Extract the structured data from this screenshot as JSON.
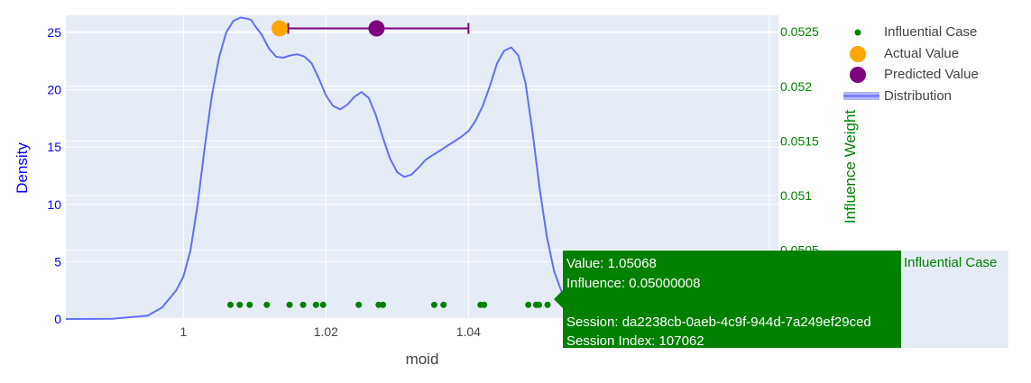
{
  "chart_data": {
    "type": "line",
    "xlabel": "moid",
    "ylabel": "Density",
    "y2label": "Influence Weight",
    "xlim": [
      0.9835,
      1.0835
    ],
    "ylim": [
      0,
      26.5
    ],
    "y2lim": [
      0.04987,
      0.05265
    ],
    "x_ticks": [
      "1",
      "1.02",
      "1.04"
    ],
    "x_tick_values": [
      1.0,
      1.02,
      1.04
    ],
    "y_ticks": [
      "0",
      "5",
      "10",
      "15",
      "20",
      "25"
    ],
    "y2_ticks": [
      "0.0505",
      "0.051",
      "0.0515",
      "0.052",
      "0.0525"
    ],
    "y2_tick_values": [
      0.0505,
      0.051,
      0.0515,
      0.052,
      0.0525
    ],
    "grid": true,
    "legend_position": "top-right",
    "colors": {
      "distribution": "#636efa",
      "influential": "#008000",
      "actual": "#ffa500",
      "predicted": "#800080",
      "plot_bg": "#e5ecf6",
      "y_axis_text": "#0000ff",
      "y2_axis_text": "#008000"
    },
    "series": [
      {
        "name": "Distribution",
        "type": "line",
        "x": [
          0.9835,
          0.99,
          0.995,
          0.997,
          0.999,
          1.0,
          1.001,
          1.002,
          1.003,
          1.004,
          1.005,
          1.006,
          1.007,
          1.008,
          1.009,
          1.0095,
          1.01,
          1.011,
          1.012,
          1.013,
          1.014,
          1.015,
          1.016,
          1.017,
          1.018,
          1.019,
          1.02,
          1.021,
          1.022,
          1.023,
          1.024,
          1.025,
          1.026,
          1.027,
          1.028,
          1.029,
          1.03,
          1.031,
          1.032,
          1.033,
          1.034,
          1.035,
          1.036,
          1.037,
          1.038,
          1.039,
          1.04,
          1.041,
          1.042,
          1.043,
          1.044,
          1.045,
          1.046,
          1.047,
          1.048,
          1.049,
          1.05,
          1.051,
          1.052,
          1.053,
          1.0545
        ],
        "y": [
          0,
          0.02,
          0.3,
          1.0,
          2.5,
          3.7,
          6.0,
          10.0,
          15.0,
          19.5,
          22.8,
          25.0,
          26.0,
          26.3,
          26.2,
          26.1,
          25.6,
          24.8,
          23.6,
          22.9,
          22.8,
          23.0,
          23.1,
          22.9,
          22.3,
          21.0,
          19.5,
          18.6,
          18.3,
          18.7,
          19.4,
          19.8,
          19.3,
          17.8,
          15.8,
          14.0,
          12.8,
          12.4,
          12.6,
          13.2,
          13.9,
          14.3,
          14.7,
          15.1,
          15.5,
          15.9,
          16.4,
          17.3,
          18.6,
          20.3,
          22.3,
          23.4,
          23.7,
          23.0,
          20.6,
          16.3,
          11.3,
          7.2,
          4.2,
          2.5,
          1.0
        ]
      },
      {
        "name": "Influential Case",
        "type": "scatter",
        "axis": "y2",
        "x": [
          1.0066,
          1.0079,
          1.0093,
          1.0117,
          1.0149,
          1.0168,
          1.0186,
          1.0196,
          1.0246,
          1.0274,
          1.028,
          1.0352,
          1.0365,
          1.0417,
          1.0422,
          1.0484,
          1.0495,
          1.0499,
          1.0511
        ],
        "y": [
          0.05,
          0.05,
          0.05,
          0.05,
          0.05,
          0.05,
          0.05,
          0.05,
          0.05,
          0.05,
          0.05,
          0.05,
          0.05,
          0.05,
          0.05,
          0.05,
          0.05,
          0.05,
          0.05
        ]
      },
      {
        "name": "Actual Value",
        "type": "scatter",
        "axis": "y2",
        "x": [
          1.0135
        ],
        "y": [
          0.05253
        ]
      },
      {
        "name": "Predicted Value",
        "type": "scatter",
        "axis": "y2",
        "x": [
          1.0271
        ],
        "y": [
          0.05253
        ],
        "error_x": [
          1.0147,
          1.04
        ]
      }
    ],
    "legend": [
      {
        "name": "Influential Case",
        "symbol": "dot-small"
      },
      {
        "name": "Actual Value",
        "symbol": "dot-orange"
      },
      {
        "name": "Predicted Value",
        "symbol": "dot-purple"
      },
      {
        "name": "Distribution",
        "symbol": "line"
      }
    ],
    "tooltip": {
      "lines": [
        "Value: 1.05068",
        "Influence: 0.05000008",
        "",
        "Session: da2238cb-0aeb-4c9f-944d-7a249ef29ced",
        "Session Index: 107062"
      ],
      "trace_name": "Influential Case"
    }
  }
}
